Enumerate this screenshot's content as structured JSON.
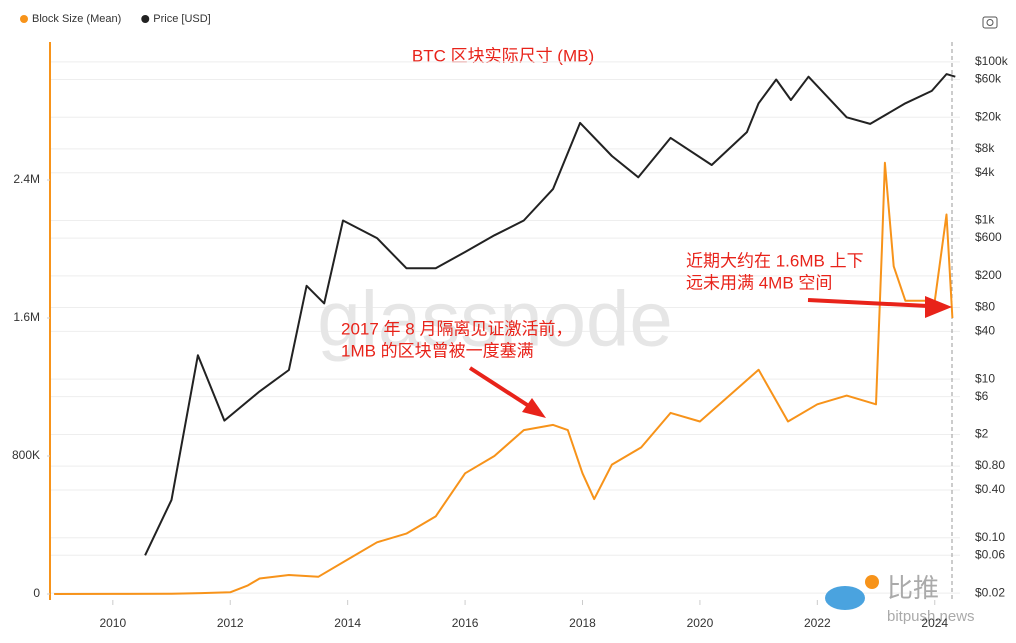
{
  "chart_data": {
    "type": "line",
    "title": "BTC 区块实际尺寸 (MB)",
    "watermark": "glassnode",
    "logo": {
      "cn": "比推",
      "site": "bitpush.news"
    },
    "annotations": [
      {
        "lines": [
          "2017 年 8 月隔离见证激活前，",
          "1MB 的区块曾被一度塞满"
        ],
        "color": "#e8231a"
      },
      {
        "lines": [
          "近期大约在 1.6MB 上下",
          "远未用满 4MB 空间"
        ],
        "color": "#e8231a"
      }
    ],
    "xlim": [
      2008.93,
      2024.43
    ],
    "xticks": [
      2010,
      2012,
      2014,
      2016,
      2018,
      2020,
      2022,
      2024
    ],
    "ylim": [
      0,
      3200000
    ],
    "yticks": [
      0,
      {
        "value": 800000,
        "label": "800K"
      },
      {
        "value": 1600000,
        "label": "1.6M"
      },
      {
        "value": 2400000,
        "label": "2.4M"
      }
    ],
    "y2lim": [
      0.0195,
      178000
    ],
    "y2scale": "log",
    "y2ticks": [
      {
        "value": 0.02,
        "label": "$0.02"
      },
      {
        "value": 0.06,
        "label": "$0.06"
      },
      {
        "value": 0.1,
        "label": "$0.10"
      },
      {
        "value": 0.4,
        "label": "$0.40"
      },
      {
        "value": 0.8,
        "label": "$0.80"
      },
      {
        "value": 2,
        "label": "$2"
      },
      {
        "value": 6,
        "label": "$6"
      },
      {
        "value": 10,
        "label": "$10"
      },
      {
        "value": 40,
        "label": "$40"
      },
      {
        "value": 80,
        "label": "$80"
      },
      {
        "value": 200,
        "label": "$200"
      },
      {
        "value": 600,
        "label": "$600"
      },
      {
        "value": 1000,
        "label": "$1k"
      },
      {
        "value": 4000,
        "label": "$4k"
      },
      {
        "value": 8000,
        "label": "$8k"
      },
      {
        "value": 20000,
        "label": "$20k"
      },
      {
        "value": 60000,
        "label": "$60k"
      },
      {
        "value": 100000,
        "label": "$100k"
      }
    ],
    "grid": true,
    "legend_position": "top-left",
    "series": [
      {
        "name": "Block Size (Mean)",
        "color": "#f7931a",
        "axis": "y",
        "x": [
          2009.0,
          2010.0,
          2011.0,
          2011.5,
          2012.0,
          2012.3,
          2012.5,
          2013.0,
          2013.5,
          2014.0,
          2014.5,
          2015.0,
          2015.5,
          2016.0,
          2016.5,
          2017.0,
          2017.5,
          2017.75,
          2018.0,
          2018.2,
          2018.5,
          2019.0,
          2019.5,
          2020.0,
          2020.5,
          2021.0,
          2021.5,
          2022.0,
          2022.5,
          2023.0,
          2023.1,
          2023.15,
          2023.3,
          2023.5,
          2024.0,
          2024.2,
          2024.3
        ],
        "values": [
          200,
          300,
          2000,
          5000,
          10000,
          50000,
          90000,
          110000,
          100000,
          200000,
          300000,
          350000,
          450000,
          700000,
          800000,
          950000,
          980000,
          950000,
          700000,
          550000,
          750000,
          850000,
          1050000,
          1000000,
          1150000,
          1300000,
          1000000,
          1100000,
          1150000,
          1100000,
          2000000,
          2500000,
          1900000,
          1700000,
          1700000,
          2200000,
          1600000
        ]
      },
      {
        "name": "Price [USD]",
        "color": "#222222",
        "axis": "y2",
        "x": [
          2010.55,
          2011.0,
          2011.45,
          2011.9,
          2012.5,
          2013.0,
          2013.3,
          2013.6,
          2013.92,
          2014.5,
          2015.0,
          2015.5,
          2016.0,
          2016.5,
          2017.0,
          2017.5,
          2017.96,
          2018.5,
          2018.95,
          2019.5,
          2020.2,
          2020.8,
          2021.0,
          2021.3,
          2021.55,
          2021.85,
          2022.5,
          2022.9,
          2023.5,
          2023.95,
          2024.2,
          2024.35
        ],
        "values": [
          0.06,
          0.3,
          20,
          3,
          7,
          13,
          150,
          90,
          1000,
          600,
          250,
          250,
          400,
          650,
          1000,
          2500,
          17000,
          6500,
          3500,
          11000,
          5000,
          13000,
          30000,
          60000,
          33000,
          65000,
          20000,
          16500,
          30000,
          43000,
          70000,
          65000
        ]
      }
    ]
  }
}
